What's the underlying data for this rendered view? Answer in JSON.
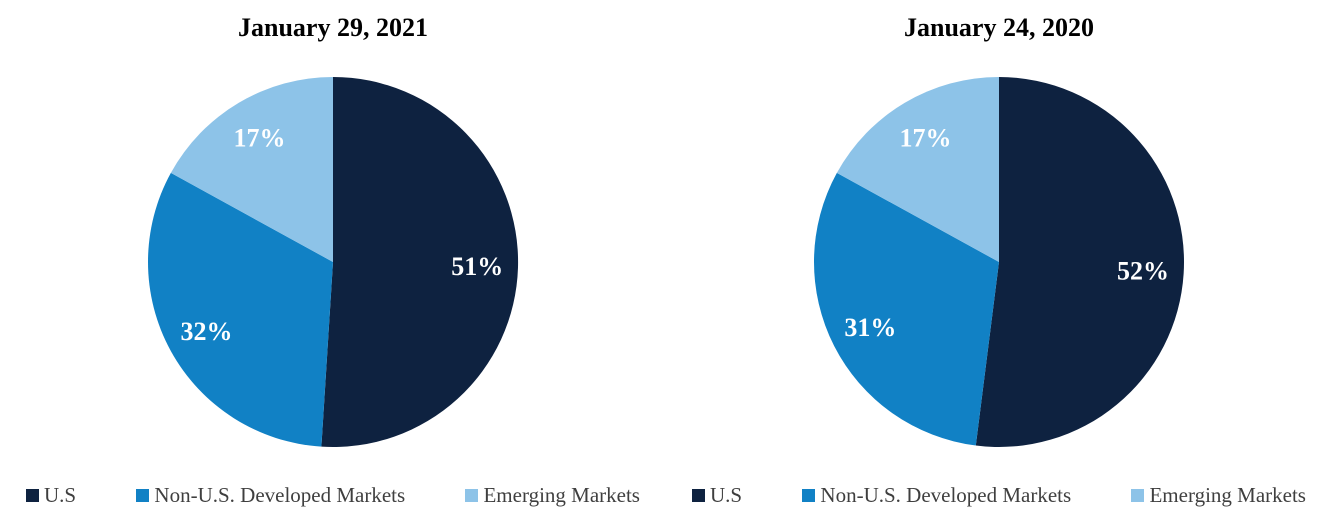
{
  "chart_data": [
    {
      "type": "pie",
      "title": "January 29, 2021",
      "categories": [
        "U.S",
        "Non-U.S. Developed Markets",
        "Emerging Markets"
      ],
      "values": [
        51,
        32,
        17
      ],
      "data_labels": [
        "51%",
        "32%",
        "17%"
      ],
      "colors": [
        "#0e2240",
        "#1181c5",
        "#8dc3e8"
      ],
      "start_angle_deg": 0,
      "direction": "clockwise",
      "legend_position": "bottom",
      "data_label_color": "#ffffff",
      "title_color": "#000000",
      "legend_text_color": "#3f3f3f"
    },
    {
      "type": "pie",
      "title": "January 24, 2020",
      "categories": [
        "U.S",
        "Non-U.S. Developed Markets",
        "Emerging Markets"
      ],
      "values": [
        52,
        31,
        17
      ],
      "data_labels": [
        "52%",
        "31%",
        "17%"
      ],
      "colors": [
        "#0e2240",
        "#1181c5",
        "#8dc3e8"
      ],
      "start_angle_deg": 0,
      "direction": "clockwise",
      "legend_position": "bottom",
      "data_label_color": "#ffffff",
      "title_color": "#000000",
      "legend_text_color": "#3f3f3f"
    }
  ]
}
